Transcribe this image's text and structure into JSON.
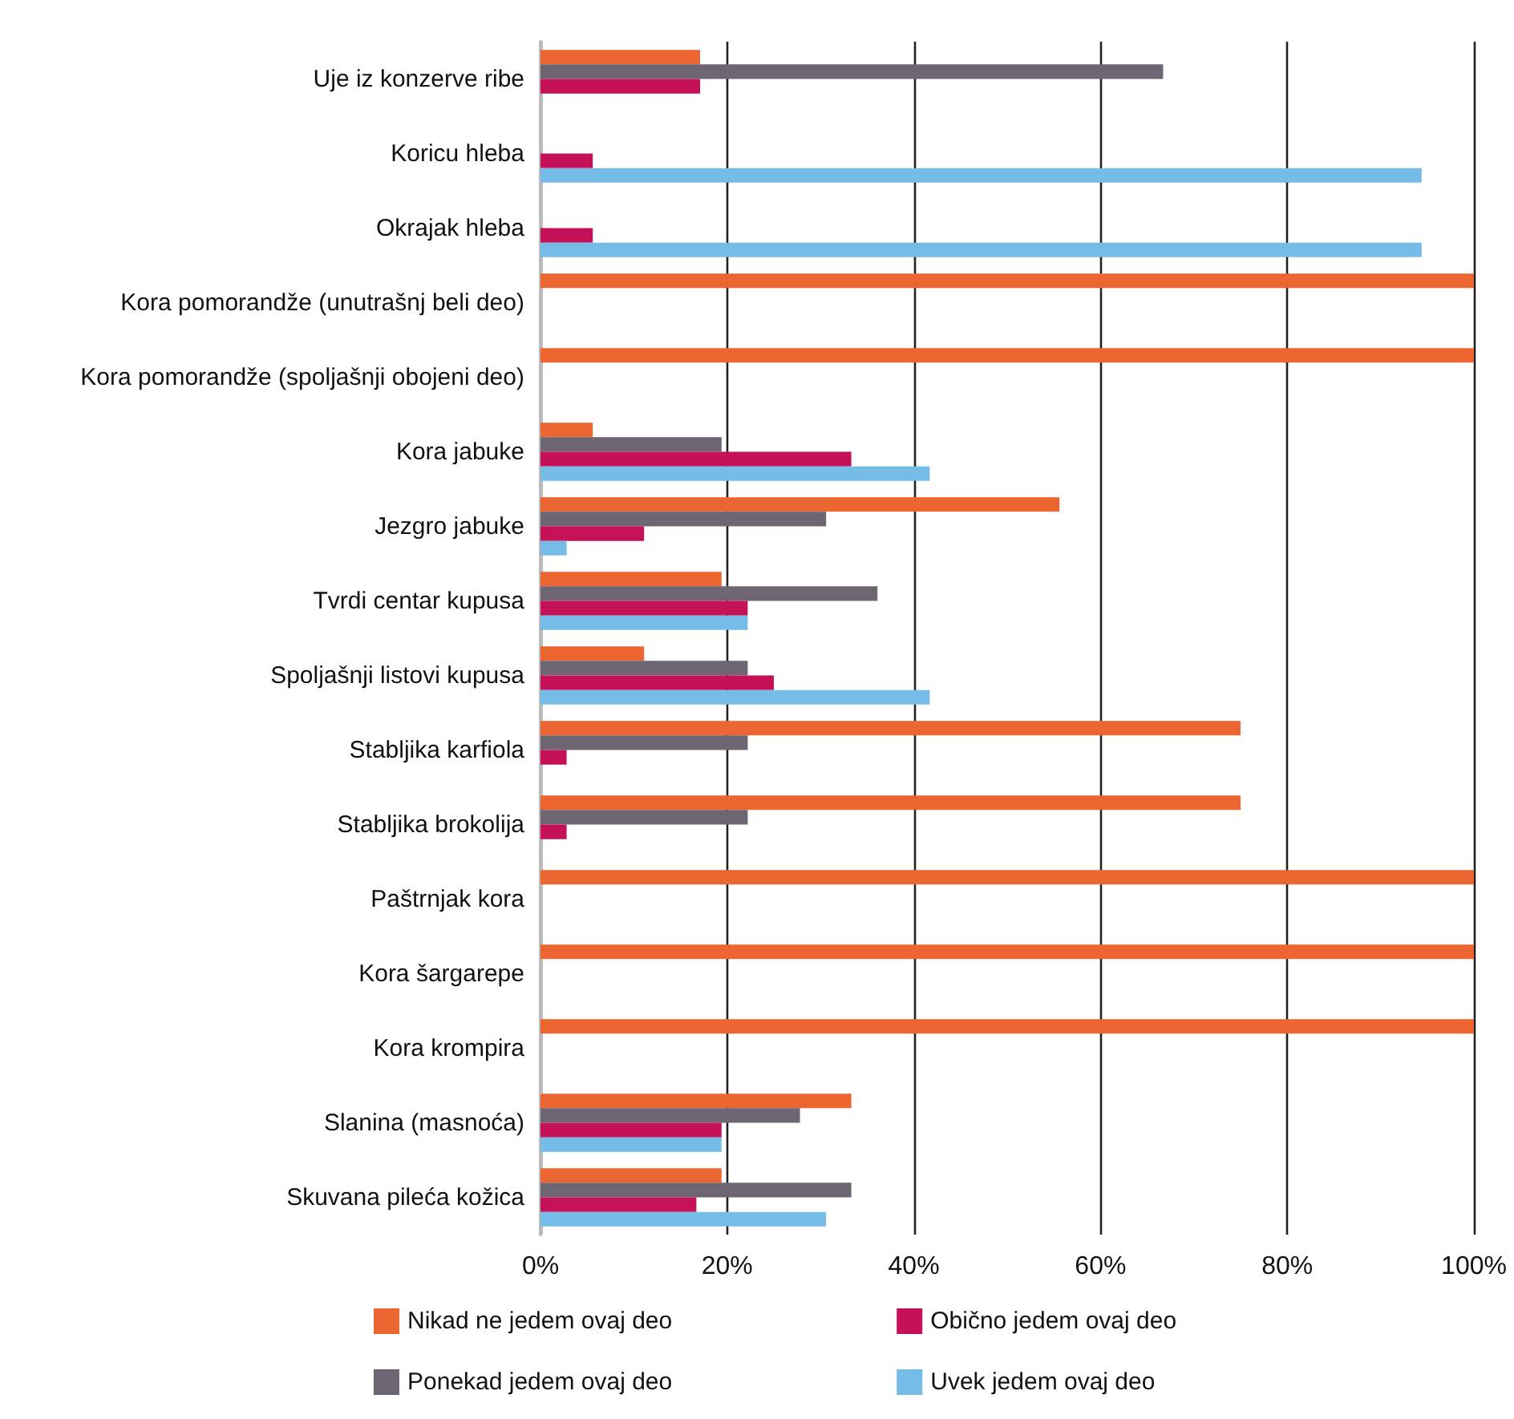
{
  "chart_data": {
    "type": "bar",
    "orientation": "horizontal",
    "categories": [
      "Uje iz konzerve ribe",
      "Koricu hleba",
      "Okrajak hleba",
      "Kora pomorandže (unutrašnj beli deo)",
      "Kora pomorandže (spoljašnji obojeni deo)",
      "Kora jabuke",
      "Jezgro jabuke",
      "Tvrdi centar kupusa",
      "Spoljašnji listovi kupusa",
      "Stabljika karfiola",
      "Stabljika brokolija",
      "Paštrnjak kora",
      "Kora šargarepe",
      "Kora krompira",
      "Slanina (masnoća)",
      "Skuvana pileća kožica"
    ],
    "series": [
      {
        "name": "Nikad ne jedem ovaj deo",
        "color": "#eb6631",
        "values": [
          17.1,
          0,
          0,
          100,
          100,
          5.6,
          55.6,
          19.4,
          11.1,
          75,
          75,
          100,
          100,
          100,
          33.3,
          19.4
        ]
      },
      {
        "name": "Ponekad jedem ovaj deo",
        "color": "#6d6571",
        "values": [
          66.7,
          0,
          0,
          0,
          0,
          19.4,
          30.6,
          36.1,
          22.2,
          22.2,
          22.2,
          0,
          0,
          0,
          27.8,
          33.3
        ]
      },
      {
        "name": "Obično jedem ovaj deo",
        "color": "#c41158",
        "values": [
          17.1,
          5.6,
          5.6,
          0,
          0,
          33.3,
          11.1,
          22.2,
          25,
          2.8,
          2.8,
          0,
          0,
          0,
          19.4,
          16.7
        ]
      },
      {
        "name": "Uvek jedem ovaj deo",
        "color": "#76bce8",
        "values": [
          0,
          94.4,
          94.4,
          0,
          0,
          41.7,
          2.8,
          22.2,
          41.7,
          0,
          0,
          0,
          0,
          0,
          19.4,
          30.6
        ]
      }
    ],
    "xlim": [
      0,
      100
    ],
    "xticks": [
      {
        "value": 0,
        "label": "0%"
      },
      {
        "value": 20,
        "label": "20%"
      },
      {
        "value": 40,
        "label": "40%"
      },
      {
        "value": 60,
        "label": "60%"
      },
      {
        "value": 80,
        "label": "80%"
      },
      {
        "value": 100,
        "label": "100%"
      }
    ],
    "grid": "x",
    "legend": "bottom"
  }
}
